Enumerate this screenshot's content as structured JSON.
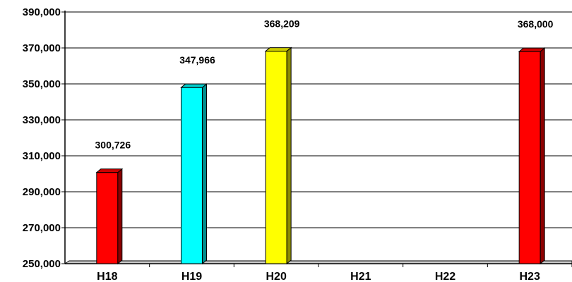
{
  "chart_data": {
    "type": "bar",
    "style": "3d-column",
    "categories": [
      "H18",
      "H19",
      "H20",
      "H21",
      "H22",
      "H23"
    ],
    "values": [
      300726,
      347966,
      368209,
      null,
      null,
      368000
    ],
    "data_labels": [
      "300,726",
      "347,966",
      "368,209",
      "",
      "",
      "368,000"
    ],
    "bar_colors": [
      "#ff0000",
      "#00ffff",
      "#ffff00",
      null,
      null,
      "#ff0000"
    ],
    "ylim": [
      250000,
      390000
    ],
    "y_ticks": [
      250000,
      270000,
      290000,
      310000,
      330000,
      350000,
      370000,
      390000
    ],
    "y_tick_labels": [
      "250,000",
      "270,000",
      "290,000",
      "310,000",
      "330,000",
      "350,000",
      "370,000",
      "390,000"
    ],
    "grid": true,
    "legend": "none",
    "title": "",
    "xlabel": "",
    "ylabel": ""
  }
}
